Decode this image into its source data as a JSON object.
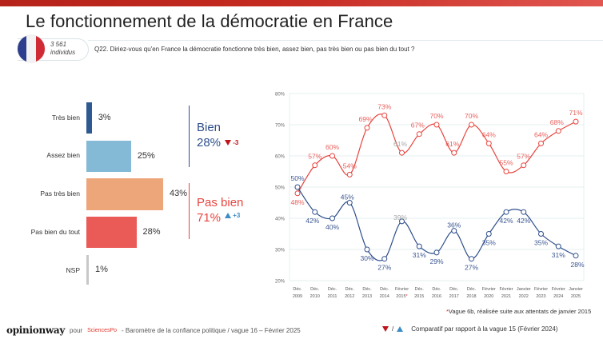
{
  "header": {
    "title": "Le fonctionnement de la démocratie en France",
    "sample_count": "3 561",
    "sample_unit": "individus",
    "question": "Q22. Diriez-vous qu'en France la démocratie fonctionne très bien, assez bien, pas très bien ou pas bien du tout ?",
    "flag_colors": [
      "#2d3e8f",
      "#f3f3f3",
      "#d02a34"
    ]
  },
  "bars": [
    {
      "label": "Très bien",
      "value": 3,
      "display": "3%",
      "color": "#2f5a91"
    },
    {
      "label": "Assez bien",
      "value": 25,
      "display": "25%",
      "color": "#84bad6"
    },
    {
      "label": "Pas très bien",
      "value": 43,
      "display": "43%",
      "color": "#eda67a"
    },
    {
      "label": "Pas bien du tout",
      "value": 28,
      "display": "28%",
      "color": "#ea5a57"
    },
    {
      "label": "NSP",
      "value": 1,
      "display": "1%",
      "color": "#c8c8c8"
    }
  ],
  "groups": {
    "bien": {
      "name": "Bien",
      "pct": "28%",
      "delta": "-3",
      "direction": "down",
      "color": "#2f4f8c"
    },
    "pas_bien": {
      "name": "Pas bien",
      "pct": "71%",
      "delta": "+3",
      "direction": "up",
      "color": "#e8453f"
    }
  },
  "chart_data": {
    "type": "line",
    "title": "",
    "xlabel": "",
    "ylabel": "",
    "ylim": [
      20,
      80
    ],
    "yticks": [
      "20%",
      "30%",
      "40%",
      "50%",
      "60%",
      "70%",
      "80%"
    ],
    "grid": true,
    "categories": [
      [
        "Déc.",
        "2009"
      ],
      [
        "Déc.",
        "2010"
      ],
      [
        "Déc.",
        "2011"
      ],
      [
        "Déc.",
        "2012"
      ],
      [
        "Déc.",
        "2013"
      ],
      [
        "Déc.",
        "2014"
      ],
      [
        "Février",
        "2015*"
      ],
      [
        "Déc.",
        "2015"
      ],
      [
        "Déc.",
        "2016"
      ],
      [
        "Déc.",
        "2017"
      ],
      [
        "Déc.",
        "2018"
      ],
      [
        "Février",
        "2020"
      ],
      [
        "Février",
        "2021"
      ],
      [
        "Janvier",
        "2022"
      ],
      [
        "Février",
        "2023"
      ],
      [
        "Février",
        "2024"
      ],
      [
        "Janvier",
        "2025"
      ]
    ],
    "highlighted_category_index": 6,
    "series": [
      {
        "name": "Pas bien",
        "color": "#e8453f",
        "label_color": "#e8605c",
        "values": [
          48,
          57,
          60,
          54,
          69,
          73,
          61,
          67,
          70,
          61,
          70,
          64,
          55,
          57,
          64,
          68,
          71
        ]
      },
      {
        "name": "Bien",
        "color": "#2f4f8c",
        "label_color": "#3b5792",
        "values": [
          50,
          42,
          40,
          45,
          30,
          27,
          39,
          31,
          29,
          36,
          27,
          35,
          42,
          42,
          35,
          31,
          28
        ]
      }
    ]
  },
  "footnote": {
    "star": "*",
    "text": "Vague 6b, réalisée suite aux attentats de janvier 2015"
  },
  "footer": {
    "brand": "opinionway",
    "pour": "pour",
    "partner": "SciencesPo",
    "survey": "-  Baromètre de la confiance politique / vague 16 – Février 2025",
    "legend_sep": "/",
    "legend_text": "Comparatif par rapport à la vague 15 (Février 2024)"
  }
}
